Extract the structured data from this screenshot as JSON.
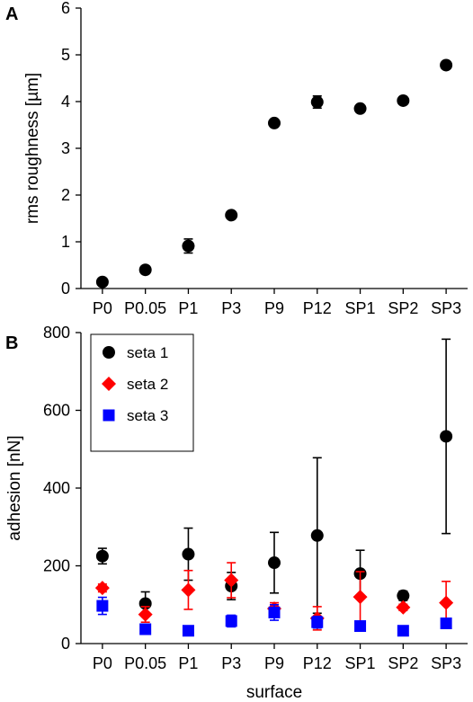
{
  "chart_data": [
    {
      "panel_label": "A",
      "type": "scatter",
      "categories": [
        "P0",
        "P0.05",
        "P1",
        "P3",
        "P9",
        "P12",
        "SP1",
        "SP2",
        "SP3"
      ],
      "ylabel": "rms roughness [µm]",
      "xlabel": "",
      "ylim": [
        0,
        6
      ],
      "yticks": [
        "0",
        "1",
        "2",
        "3",
        "4",
        "5",
        "6"
      ],
      "grid": false,
      "series": [
        {
          "marker": "circle",
          "color": "#000000",
          "values": [
            0.14,
            0.4,
            0.91,
            1.57,
            3.54,
            3.99,
            3.85,
            4.02,
            4.78
          ],
          "errors": [
            0.03,
            0.08,
            0.15,
            0.04,
            0.05,
            0.13,
            0.04,
            0.04,
            0.05
          ]
        }
      ]
    },
    {
      "panel_label": "B",
      "type": "scatter",
      "categories": [
        "P0",
        "P0.05",
        "P1",
        "P3",
        "P9",
        "P12",
        "SP1",
        "SP2",
        "SP3"
      ],
      "ylabel": "adhesion [nN]",
      "xlabel": "surface",
      "ylim": [
        0,
        800
      ],
      "yticks": [
        "0",
        "200",
        "400",
        "600",
        "800"
      ],
      "grid": false,
      "legend_position": "top-left",
      "series": [
        {
          "name": "seta 1",
          "marker": "circle",
          "color": "#000000",
          "values": [
            225,
            103,
            230,
            148,
            208,
            278,
            180,
            123,
            533
          ],
          "errors": [
            20,
            30,
            67,
            35,
            78,
            200,
            60,
            12,
            250
          ]
        },
        {
          "name": "seta 2",
          "marker": "diamond",
          "color": "#ff0000",
          "values": [
            143,
            75,
            138,
            163,
            90,
            65,
            120,
            93,
            105
          ],
          "errors": [
            10,
            20,
            50,
            45,
            15,
            30,
            65,
            8,
            55
          ]
        },
        {
          "name": "seta 3",
          "marker": "square",
          "color": "#0000ff",
          "values": [
            97,
            37,
            33,
            58,
            80,
            55,
            45,
            33,
            52
          ],
          "errors": [
            22,
            6,
            4,
            15,
            20,
            15,
            6,
            10,
            10
          ]
        }
      ]
    }
  ]
}
